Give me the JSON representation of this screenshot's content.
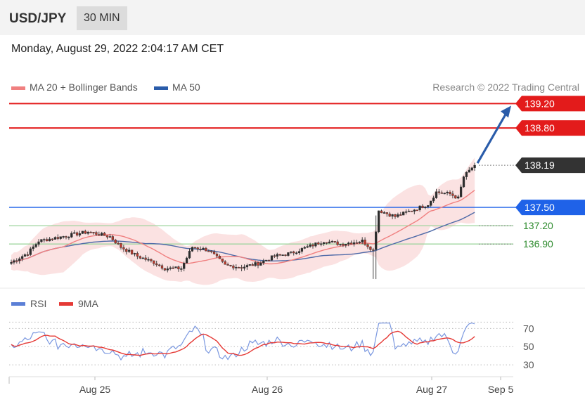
{
  "header": {
    "symbol": "USD/JPY",
    "timeframe": "30 MIN"
  },
  "datetime": "Monday, August 29, 2022 2:04:17 AM CET",
  "legend": {
    "ma20": {
      "label": "MA 20 + Bollinger Bands",
      "color": "#f08080"
    },
    "ma50": {
      "label": "MA 50",
      "color": "#2a5caa"
    }
  },
  "copyright": "Research © 2022 Trading Central",
  "rsi_legend": {
    "rsi": {
      "label": "RSI",
      "color": "#5b7fd6"
    },
    "ma9": {
      "label": "9MA",
      "color": "#e53935"
    }
  },
  "chart_data": [
    {
      "type": "candlestick",
      "symbol": "USD/JPY",
      "interval": "30 MIN",
      "ylim": [
        136.2,
        139.4
      ],
      "price_levels": [
        {
          "label": "139.20",
          "value": 139.2,
          "kind": "resistance",
          "color": "#e31b1b"
        },
        {
          "label": "138.80",
          "value": 138.8,
          "kind": "resistance",
          "color": "#e31b1b"
        },
        {
          "label": "138.19",
          "value": 138.19,
          "kind": "last",
          "color": "#333333"
        },
        {
          "label": "137.50",
          "value": 137.5,
          "kind": "pivot",
          "color": "#1f62e8"
        },
        {
          "label": "137.20",
          "value": 137.2,
          "kind": "support",
          "color": "#2e8b2e"
        },
        {
          "label": "136.90",
          "value": 136.9,
          "kind": "support",
          "color": "#2e8b2e"
        }
      ],
      "forecast_arrow": {
        "from": 138.19,
        "to": 139.2
      },
      "x_ticks": [
        "Aug 25",
        "Aug 26",
        "Aug 27",
        "Sep 5"
      ]
    },
    {
      "type": "line",
      "name": "RSI",
      "ylim": [
        20,
        85
      ],
      "y_ticks": [
        "70",
        "50",
        "30"
      ],
      "series": [
        "RSI",
        "9MA"
      ]
    }
  ]
}
